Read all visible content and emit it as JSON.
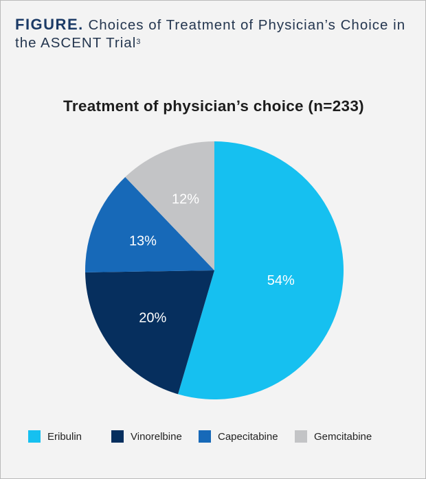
{
  "caption": {
    "figure_label": "FIGURE.",
    "text": "Choices of Treatment of Physician’s Choice in the ASCENT Trial",
    "reference": "3"
  },
  "chart_data": {
    "type": "pie",
    "title": "Treatment of physician’s choice (n=233)",
    "categories": [
      "Eribulin",
      "Vinorelbine",
      "Capecitabine",
      "Gemcitabine"
    ],
    "values": [
      54,
      20,
      13,
      12
    ],
    "labels": [
      "54%",
      "20%",
      "13%",
      "12%"
    ],
    "colors": [
      "#16c0f0",
      "#062f5e",
      "#1769b8",
      "#c3c4c6"
    ],
    "start": "12 o'clock, clockwise",
    "legend_position": "bottom"
  }
}
